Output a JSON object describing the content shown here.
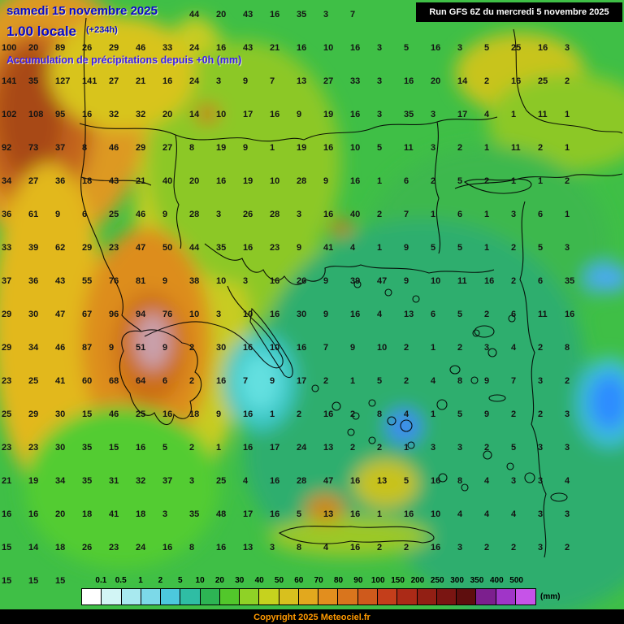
{
  "header": {
    "date_line": "samedi 15 novembre 2025",
    "time_line": "1.00 locale",
    "forecast_offset": "(+234h)",
    "subtitle": "Accumulation de précipitations depuis +0h (mm)"
  },
  "run_info": {
    "label": "Run GFS 6Z du mercredi 5 novembre 2025",
    "bg": "#000000",
    "fg": "#ffffff"
  },
  "legend": {
    "labels": [
      "0.1",
      "0.5",
      "1",
      "2",
      "5",
      "10",
      "20",
      "30",
      "40",
      "50",
      "60",
      "70",
      "80",
      "90",
      "100",
      "150",
      "200",
      "250",
      "300",
      "350",
      "400",
      "500"
    ],
    "unit": "(mm)",
    "colors": [
      "#ffffff",
      "#d2f5f5",
      "#a8e9ef",
      "#7cd9e8",
      "#4cc8dd",
      "#2fbda4",
      "#2db454",
      "#52c72b",
      "#8fd226",
      "#c6d21e",
      "#d8c01e",
      "#e2a81e",
      "#e28e1e",
      "#d9751d",
      "#cf5a1c",
      "#c43e1b",
      "#ab2a17",
      "#921f14",
      "#7a1512",
      "#5e0e0e",
      "#7c1f8e",
      "#a035c8",
      "#c653e8"
    ]
  },
  "footer": {
    "copyright": "Copyright 2025 Meteociel.fr",
    "fg": "#ff9900",
    "bg": "#000000"
  },
  "map": {
    "base_color": "#3fbf46",
    "values_grid": [
      [
        "",
        "",
        "",
        "",
        "",
        "",
        "",
        "44",
        "20",
        "43",
        "16",
        "35",
        "3",
        "7",
        "",
        "",
        "",
        "",
        "",
        "",
        "",
        "",
        ""
      ],
      [
        "100",
        "20",
        "89",
        "26",
        "29",
        "46",
        "33",
        "24",
        "16",
        "43",
        "21",
        "16",
        "10",
        "16",
        "3",
        "5",
        "16",
        "3",
        "5",
        "25",
        "16",
        "3",
        ""
      ],
      [
        "141",
        "35",
        "127",
        "141",
        "27",
        "21",
        "16",
        "24",
        "3",
        "9",
        "7",
        "13",
        "27",
        "33",
        "3",
        "16",
        "20",
        "14",
        "2",
        "16",
        "25",
        "2",
        ""
      ],
      [
        "102",
        "108",
        "95",
        "16",
        "32",
        "32",
        "20",
        "14",
        "10",
        "17",
        "16",
        "9",
        "19",
        "16",
        "3",
        "35",
        "3",
        "17",
        "4",
        "1",
        "11",
        "1",
        ""
      ],
      [
        "92",
        "73",
        "37",
        "8",
        "46",
        "29",
        "27",
        "8",
        "19",
        "9",
        "1",
        "19",
        "16",
        "10",
        "5",
        "11",
        "3",
        "2",
        "1",
        "11",
        "2",
        "1",
        ""
      ],
      [
        "34",
        "27",
        "36",
        "18",
        "43",
        "21",
        "40",
        "20",
        "16",
        "19",
        "10",
        "28",
        "9",
        "16",
        "1",
        "6",
        "2",
        "5",
        "2",
        "1",
        "1",
        "2",
        ""
      ],
      [
        "36",
        "61",
        "9",
        "6",
        "25",
        "46",
        "9",
        "28",
        "3",
        "26",
        "28",
        "3",
        "16",
        "40",
        "2",
        "7",
        "1",
        "6",
        "1",
        "3",
        "6",
        "1",
        ""
      ],
      [
        "33",
        "39",
        "62",
        "29",
        "23",
        "47",
        "50",
        "44",
        "35",
        "16",
        "23",
        "9",
        "41",
        "4",
        "1",
        "9",
        "5",
        "5",
        "1",
        "2",
        "5",
        "3",
        ""
      ],
      [
        "37",
        "36",
        "43",
        "55",
        "76",
        "81",
        "9",
        "38",
        "10",
        "3",
        "16",
        "26",
        "9",
        "39",
        "47",
        "9",
        "10",
        "11",
        "16",
        "2",
        "6",
        "35",
        ""
      ],
      [
        "29",
        "30",
        "47",
        "67",
        "96",
        "94",
        "76",
        "10",
        "3",
        "10",
        "16",
        "30",
        "9",
        "16",
        "4",
        "13",
        "6",
        "5",
        "2",
        "6",
        "11",
        "16",
        ""
      ],
      [
        "29",
        "34",
        "46",
        "87",
        "9",
        "51",
        "9",
        "2",
        "30",
        "16",
        "10",
        "16",
        "7",
        "9",
        "10",
        "2",
        "1",
        "2",
        "3",
        "4",
        "2",
        "8",
        ""
      ],
      [
        "23",
        "25",
        "41",
        "60",
        "68",
        "64",
        "6",
        "2",
        "16",
        "7",
        "9",
        "17",
        "2",
        "1",
        "5",
        "2",
        "4",
        "8",
        "9",
        "7",
        "3",
        "2",
        ""
      ],
      [
        "25",
        "29",
        "30",
        "15",
        "46",
        "25",
        "16",
        "18",
        "9",
        "16",
        "1",
        "2",
        "16",
        "2",
        "8",
        "4",
        "1",
        "5",
        "9",
        "2",
        "2",
        "3",
        ""
      ],
      [
        "23",
        "23",
        "30",
        "35",
        "15",
        "16",
        "5",
        "2",
        "1",
        "16",
        "17",
        "24",
        "13",
        "2",
        "2",
        "1",
        "3",
        "3",
        "2",
        "5",
        "3",
        "3",
        ""
      ],
      [
        "21",
        "19",
        "34",
        "35",
        "31",
        "32",
        "37",
        "3",
        "25",
        "4",
        "16",
        "28",
        "47",
        "16",
        "13",
        "5",
        "16",
        "8",
        "4",
        "3",
        "3",
        "4",
        ""
      ],
      [
        "16",
        "16",
        "20",
        "18",
        "41",
        "18",
        "3",
        "35",
        "48",
        "17",
        "16",
        "5",
        "13",
        "16",
        "1",
        "16",
        "10",
        "4",
        "4",
        "4",
        "3",
        "3",
        ""
      ],
      [
        "15",
        "14",
        "18",
        "26",
        "23",
        "24",
        "16",
        "8",
        "16",
        "13",
        "3",
        "8",
        "4",
        "16",
        "2",
        "2",
        "16",
        "3",
        "2",
        "2",
        "3",
        "2",
        ""
      ],
      [
        "15",
        "15",
        "15",
        "",
        "",
        "",
        "",
        "",
        "",
        "",
        "",
        "",
        "",
        "",
        "",
        "",
        "",
        "",
        "",
        "",
        "",
        "",
        ""
      ]
    ]
  }
}
